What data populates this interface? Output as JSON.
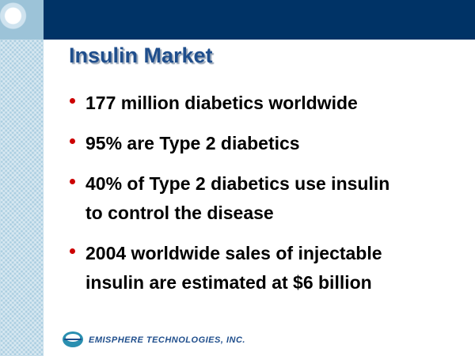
{
  "header": {
    "title": "Insulin Market"
  },
  "bullets": [
    {
      "lines": [
        "177 million diabetics worldwide"
      ]
    },
    {
      "lines": [
        "95% are Type 2 diabetics"
      ]
    },
    {
      "lines": [
        "40% of Type 2 diabetics use insulin",
        "to control the disease"
      ]
    },
    {
      "lines": [
        "2004 worldwide sales of injectable",
        "insulin are estimated at $6 billion"
      ]
    }
  ],
  "footer": {
    "company": "EMISPHERE TECHNOLOGIES, INC."
  }
}
